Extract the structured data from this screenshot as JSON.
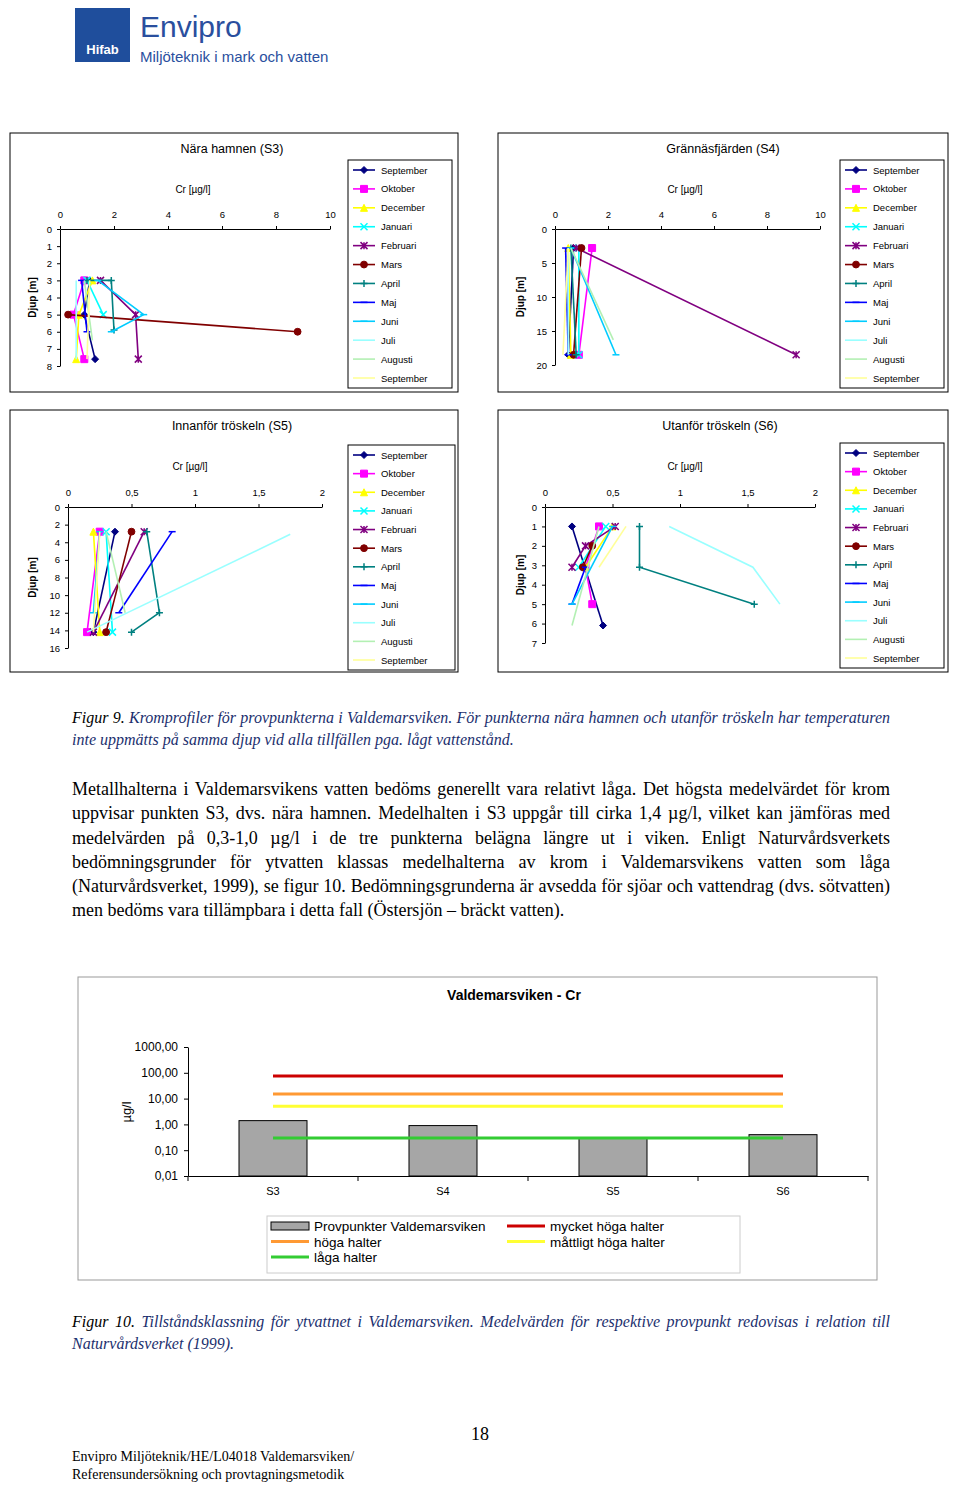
{
  "header": {
    "logo": "Hifab",
    "brand": "Envipro",
    "tagline": "Miljöteknik i mark och vatten"
  },
  "chart_data": [
    {
      "type": "line",
      "title": "Nära hamnen (S3)",
      "x_label": "Cr [µg/l]",
      "y_label": "Djup [m]",
      "xlim": [
        0,
        10
      ],
      "xticks": [
        0,
        2,
        4,
        6,
        8,
        10
      ],
      "ylim": [
        8,
        0
      ],
      "yticks": [
        0,
        1,
        2,
        3,
        4,
        5,
        6,
        7,
        8
      ],
      "legend": "right",
      "series": [
        {
          "name": "September",
          "color": "#000080",
          "marker": "diamond",
          "x": [
            1.1,
            0.9,
            1.3
          ],
          "values": [
            3,
            5,
            7.6
          ]
        },
        {
          "name": "Oktober",
          "color": "#ff00ff",
          "marker": "square",
          "x": [
            0.9,
            0.5,
            0.9
          ],
          "values": [
            3,
            5,
            7.6
          ]
        },
        {
          "name": "December",
          "color": "#ffff00",
          "marker": "triangle",
          "x": [
            1.2,
            0.7,
            0.6
          ],
          "values": [
            3,
            5,
            7.6
          ]
        },
        {
          "name": "Januari",
          "color": "#00ffff",
          "marker": "x",
          "x": [
            1.0,
            1.6
          ],
          "values": [
            3,
            5
          ]
        },
        {
          "name": "Februari",
          "color": "#800080",
          "marker": "star",
          "x": [
            1.5,
            2.8,
            2.9
          ],
          "values": [
            3,
            5,
            7.6
          ]
        },
        {
          "name": "Mars",
          "color": "#800000",
          "marker": "circle",
          "x": [
            0.3,
            8.8
          ],
          "values": [
            5,
            6
          ]
        },
        {
          "name": "April",
          "color": "#008080",
          "marker": "plus",
          "x": [
            1.0,
            1.9,
            2.0
          ],
          "values": [
            3,
            3,
            5.9
          ]
        },
        {
          "name": "Maj",
          "color": "#0000ff",
          "marker": "dash",
          "x": [
            0.8,
            1.0
          ],
          "values": [
            3,
            6
          ]
        },
        {
          "name": "Juni",
          "color": "#00ccff",
          "marker": "dash",
          "x": [
            1.4,
            3.1,
            1.9
          ],
          "values": [
            3,
            5,
            6
          ]
        },
        {
          "name": "Juli",
          "color": "#99ffff",
          "marker": "none",
          "x": [
            0.6,
            0.6
          ],
          "values": [
            3,
            7.6
          ]
        },
        {
          "name": "Augusti",
          "color": "#b3f0b3",
          "marker": "none",
          "x": [
            0.9,
            1.2
          ],
          "values": [
            3,
            6.5
          ]
        },
        {
          "name": "September",
          "color": "#ffff99",
          "marker": "none",
          "x": [
            1.1,
            1.0
          ],
          "values": [
            3,
            7.6
          ]
        }
      ]
    },
    {
      "type": "line",
      "title": "Grännäsfjärden (S4)",
      "x_label": "Cr [µg/l]",
      "y_label": "Djup [m]",
      "xlim": [
        0,
        10
      ],
      "xticks": [
        0,
        2,
        4,
        6,
        8,
        10
      ],
      "ylim": [
        20,
        0
      ],
      "yticks": [
        0,
        5,
        10,
        15,
        20
      ],
      "legend": "right",
      "series": [
        {
          "name": "September",
          "color": "#000080",
          "marker": "diamond",
          "x": [
            0.7,
            0.5
          ],
          "values": [
            2.8,
            18.5
          ]
        },
        {
          "name": "Oktober",
          "color": "#ff00ff",
          "marker": "square",
          "x": [
            1.4,
            0.9
          ],
          "values": [
            2.8,
            18.5
          ]
        },
        {
          "name": "December",
          "color": "#ffff00",
          "marker": "triangle",
          "x": [
            0.5,
            0.6
          ],
          "values": [
            2.8,
            18.5
          ]
        },
        {
          "name": "Januari",
          "color": "#00ffff",
          "marker": "x",
          "x": [
            0.9,
            0.9
          ],
          "values": [
            2.8,
            18.5
          ]
        },
        {
          "name": "Februari",
          "color": "#800080",
          "marker": "star",
          "x": [
            0.8,
            9.1
          ],
          "values": [
            2.8,
            18.5
          ]
        },
        {
          "name": "Mars",
          "color": "#800000",
          "marker": "circle",
          "x": [
            1.0,
            0.7
          ],
          "values": [
            2.8,
            18.5
          ]
        },
        {
          "name": "April",
          "color": "#008080",
          "marker": "plus",
          "x": [
            0.6,
            0.8
          ],
          "values": [
            2.8,
            18.5
          ]
        },
        {
          "name": "Maj",
          "color": "#0000ff",
          "marker": "dash",
          "x": [
            0.4,
            0.5
          ],
          "values": [
            2.8,
            18.5
          ]
        },
        {
          "name": "Juni",
          "color": "#00ccff",
          "marker": "dash",
          "x": [
            0.6,
            2.3
          ],
          "values": [
            2.8,
            18.5
          ]
        },
        {
          "name": "Juli",
          "color": "#99ffff",
          "marker": "none",
          "x": [
            0.5,
            0.5
          ],
          "values": [
            2.8,
            18.5
          ]
        },
        {
          "name": "Augusti",
          "color": "#b3f0b3",
          "marker": "none",
          "x": [
            0.6,
            2.2
          ],
          "values": [
            2.8,
            16.3
          ]
        },
        {
          "name": "September",
          "color": "#ffff99",
          "marker": "none",
          "x": [
            0.5,
            0.3
          ],
          "values": [
            2.8,
            18.5
          ]
        }
      ]
    },
    {
      "type": "line",
      "title": "Innanför tröskeln (S5)",
      "x_label": "Cr [µg/l]",
      "y_label": "Djup [m]",
      "xlim": [
        0,
        2
      ],
      "xticks": [
        0,
        {
          "value": 0.5,
          "label": "0,5"
        },
        1,
        {
          "value": 1.5,
          "label": "1,5"
        },
        2
      ],
      "ylim": [
        16,
        0
      ],
      "yticks": [
        0,
        2,
        4,
        6,
        8,
        10,
        12,
        14,
        16
      ],
      "legend": "right",
      "series": [
        {
          "name": "September",
          "color": "#000080",
          "marker": "diamond",
          "x": [
            0.37,
            0.2
          ],
          "values": [
            2.8,
            14.2
          ]
        },
        {
          "name": "Oktober",
          "color": "#ff00ff",
          "marker": "square",
          "x": [
            0.25,
            0.15
          ],
          "values": [
            2.8,
            14.2
          ]
        },
        {
          "name": "December",
          "color": "#ffff00",
          "marker": "triangle",
          "x": [
            0.2,
            0.25
          ],
          "values": [
            2.8,
            14.2
          ]
        },
        {
          "name": "Januari",
          "color": "#00ffff",
          "marker": "x",
          "x": [
            0.3,
            0.35
          ],
          "values": [
            2.8,
            14.2
          ]
        },
        {
          "name": "Februari",
          "color": "#800080",
          "marker": "star",
          "x": [
            0.6,
            0.2
          ],
          "values": [
            2.8,
            14.2
          ]
        },
        {
          "name": "Mars",
          "color": "#800000",
          "marker": "circle",
          "x": [
            0.5,
            0.3
          ],
          "values": [
            2.8,
            14.2
          ]
        },
        {
          "name": "April",
          "color": "#008080",
          "marker": "plus",
          "x": [
            0.62,
            0.72,
            0.5
          ],
          "values": [
            2.8,
            12,
            14.2
          ]
        },
        {
          "name": "Maj",
          "color": "#0000ff",
          "marker": "dash",
          "x": [
            0.82,
            0.4
          ],
          "values": [
            2.8,
            12
          ]
        },
        {
          "name": "Juni",
          "color": "#00ccff",
          "marker": "dash",
          "x": [
            0.25,
            0.2
          ],
          "values": [
            2.8,
            12
          ]
        },
        {
          "name": "Juli",
          "color": "#99ffff",
          "marker": "none",
          "x": [
            1.75,
            0.15
          ],
          "values": [
            3.1,
            14.2
          ]
        },
        {
          "name": "Augusti",
          "color": "#b3f0b3",
          "marker": "none",
          "x": [
            0.3,
            0.45
          ],
          "values": [
            2.8,
            12
          ]
        },
        {
          "name": "September",
          "color": "#ffff99",
          "marker": "none",
          "x": [
            0.25,
            0.2
          ],
          "values": [
            2.8,
            14.2
          ]
        }
      ]
    },
    {
      "type": "line",
      "title": "Utanför tröskeln (S6)",
      "x_label": "Cr [µg/l]",
      "y_label": "Djup [m]",
      "xlim": [
        0,
        2
      ],
      "xticks": [
        0,
        {
          "value": 0.5,
          "label": "0,5"
        },
        1,
        {
          "value": 1.5,
          "label": "1,5"
        },
        2
      ],
      "ylim": [
        7,
        0
      ],
      "yticks": [
        0,
        1,
        2,
        3,
        4,
        5,
        6,
        7
      ],
      "legend": "right",
      "series": [
        {
          "name": "September",
          "color": "#000080",
          "marker": "diamond",
          "x": [
            0.2,
            0.43
          ],
          "values": [
            1,
            6.1
          ]
        },
        {
          "name": "Oktober",
          "color": "#ff00ff",
          "marker": "square",
          "x": [
            0.4,
            0.3,
            0.35
          ],
          "values": [
            1,
            3.1,
            5
          ]
        },
        {
          "name": "December",
          "color": "#ffff00",
          "marker": "triangle",
          "x": [
            0.5,
            0.3
          ],
          "values": [
            1,
            3.1
          ]
        },
        {
          "name": "Januari",
          "color": "#00ffff",
          "marker": "x",
          "x": [
            0.45,
            0.25
          ],
          "values": [
            1,
            3.1
          ]
        },
        {
          "name": "Februari",
          "color": "#800080",
          "marker": "star",
          "x": [
            0.52,
            0.3,
            0.2
          ],
          "values": [
            1,
            2,
            3.1
          ]
        },
        {
          "name": "Mars",
          "color": "#800000",
          "marker": "circle",
          "x": [
            0.35,
            0.28
          ],
          "values": [
            2,
            3.1
          ]
        },
        {
          "name": "April",
          "color": "#008080",
          "marker": "plus",
          "x": [
            0.7,
            0.7,
            1.55
          ],
          "values": [
            1,
            3.1,
            5
          ]
        },
        {
          "name": "Maj",
          "color": "#0000ff",
          "marker": "dash",
          "x": [
            0.3,
            0.2
          ],
          "values": [
            3.1,
            5
          ]
        },
        {
          "name": "Juni",
          "color": "#00ccff",
          "marker": "dash",
          "x": [
            0.5,
            0.2
          ],
          "values": [
            1,
            5
          ]
        },
        {
          "name": "Juli",
          "color": "#99ffff",
          "marker": "none",
          "x": [
            0.92,
            1.54,
            1.74
          ],
          "values": [
            1,
            3.1,
            5
          ]
        },
        {
          "name": "Augusti",
          "color": "#b3f0b3",
          "marker": "none",
          "x": [
            0.4,
            0.2
          ],
          "values": [
            1,
            6.1
          ]
        },
        {
          "name": "September",
          "color": "#ffff99",
          "marker": "none",
          "x": [
            0.6,
            0.4
          ],
          "values": [
            1,
            3.1
          ]
        }
      ]
    },
    {
      "type": "bar",
      "title": "Valdemarsviken - Cr",
      "y_label": "µg/l",
      "log": "y",
      "categories": [
        "S3",
        "S4",
        "S5",
        "S6"
      ],
      "ylim": [
        0.01,
        1000
      ],
      "yticks": [
        {
          "value": 0.01,
          "label": "0,01"
        },
        {
          "value": 0.1,
          "label": "0,10"
        },
        {
          "value": 1,
          "label": "1,00"
        },
        {
          "value": 10,
          "label": "10,00"
        },
        {
          "value": 100,
          "label": "100,00"
        },
        {
          "value": 1000,
          "label": "1000,00"
        }
      ],
      "legend": "bottom",
      "series": [
        {
          "name": "Provpunkter Valdemarsviken",
          "type": "bar",
          "color": "#a6a6a6",
          "values": [
            1.4,
            0.9,
            0.3,
            0.4
          ]
        },
        {
          "name": "höga halter",
          "type": "line",
          "color": "#ff9933",
          "values": [
            15,
            15,
            15,
            15
          ]
        },
        {
          "name": "låga halter",
          "type": "line",
          "color": "#33cc33",
          "values": [
            0.3,
            0.3,
            0.3,
            0.3
          ]
        },
        {
          "name": "mycket höga halter",
          "type": "line",
          "color": "#cc0000",
          "values": [
            75,
            75,
            75,
            75
          ]
        },
        {
          "name": "måttligt höga halter",
          "type": "line",
          "color": "#ffff33",
          "values": [
            5,
            5,
            5,
            5
          ]
        }
      ]
    }
  ],
  "figure9": {
    "label": "Figur 9.",
    "caption": "Kromprofiler för provpunkterna i Valdemarsviken. För punkterna nära hamnen och utanför tröskeln har temperaturen inte uppmätts på samma djup vid alla tillfällen pga. lågt vattenstånd."
  },
  "paragraph": "Metallhalterna i Valdemarsvikens vatten bedöms generellt vara relativt låga. Det högsta medelvärdet för krom uppvisar punkten S3, dvs. nära hamnen. Medelhalten i S3 uppgår till cirka 1,4 µg/l, vilket kan jämföras med medelvärden på 0,3-1,0 µg/l i de tre punkterna belägna längre ut i viken. Enligt Naturvårdsverkets bedömningsgrunder för ytvatten klassas medelhalterna av krom i Valdemarsvikens vatten som låga (Naturvårdsverket, 1999), se figur 10. Bedömningsgrunderna är avsedda för sjöar och vattendrag (dvs. sötvatten) men bedöms vara tillämpbara i detta fall (Östersjön – bräckt vatten).",
  "figure10": {
    "label": "Figur 10.",
    "caption": "Tillståndsklassning för ytvattnet i Valdemarsviken. Medelvärden för respektive provpunkt redovisas i relation till Naturvårdsverket (1999)."
  },
  "page_number": "18",
  "footer": [
    "Envipro Miljöteknik/HE/L04018 Valdemarsviken/",
    "Referensundersökning och provtagningsmetodik"
  ]
}
